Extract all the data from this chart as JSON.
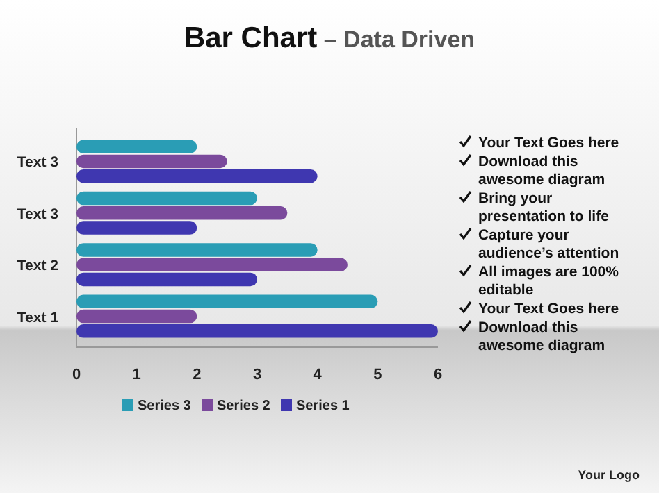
{
  "chart_data": {
    "type": "bar",
    "orientation": "horizontal",
    "title": "Bar Chart",
    "subtitle": "– Data Driven",
    "categories": [
      "Text 3",
      "Text 3",
      "Text 2",
      "Text 1"
    ],
    "series": [
      {
        "name": "Series 3",
        "color": "#2a9db5",
        "values": [
          2,
          3,
          4,
          5
        ]
      },
      {
        "name": "Series 2",
        "color": "#7b4a9c",
        "values": [
          2.5,
          3.5,
          4.5,
          2
        ]
      },
      {
        "name": "Series 1",
        "color": "#3f37b0",
        "values": [
          4,
          2,
          3,
          6
        ]
      }
    ],
    "xlim": [
      0,
      6
    ],
    "xticks": [
      0,
      1,
      2,
      3,
      4,
      5,
      6
    ],
    "grid": false,
    "legend": "bottom",
    "annotations": [
      "Your Text Goes here",
      "Download this awesome diagram",
      "Bring your presentation to life",
      "Capture your audience’s attention",
      "All images are 100% editable",
      "Your Text Goes here",
      "Download this awesome diagram",
      "Your Logo"
    ]
  }
}
